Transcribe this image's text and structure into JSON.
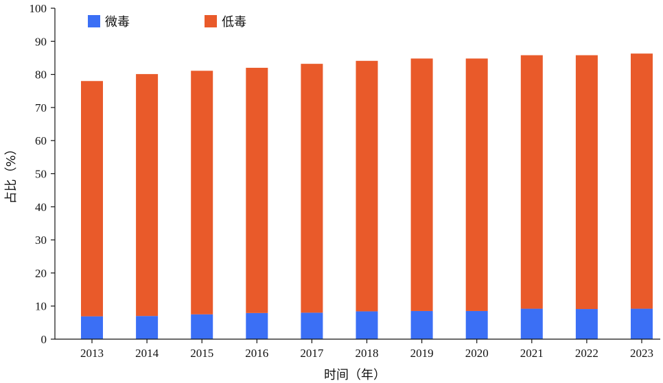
{
  "chart_data": {
    "type": "bar",
    "stacked": true,
    "categories": [
      "2013",
      "2014",
      "2015",
      "2016",
      "2017",
      "2018",
      "2019",
      "2020",
      "2021",
      "2022",
      "2023"
    ],
    "series": [
      {
        "name": "微毒",
        "color": "#3b6ff5",
        "values": [
          6.9,
          7.0,
          7.5,
          7.9,
          8.0,
          8.4,
          8.5,
          8.5,
          9.2,
          9.1,
          9.2
        ]
      },
      {
        "name": "低毒",
        "color": "#e95a2a",
        "values": [
          71.1,
          73.1,
          73.6,
          74.1,
          75.2,
          75.7,
          76.3,
          76.3,
          76.6,
          76.7,
          77.1
        ]
      }
    ],
    "xlabel": "时间（年）",
    "ylabel": "占比（%）",
    "ylim": [
      0,
      100
    ],
    "yticks": [
      0,
      10,
      20,
      30,
      40,
      50,
      60,
      70,
      80,
      90,
      100
    ],
    "grid": false,
    "legend": "top-left"
  }
}
